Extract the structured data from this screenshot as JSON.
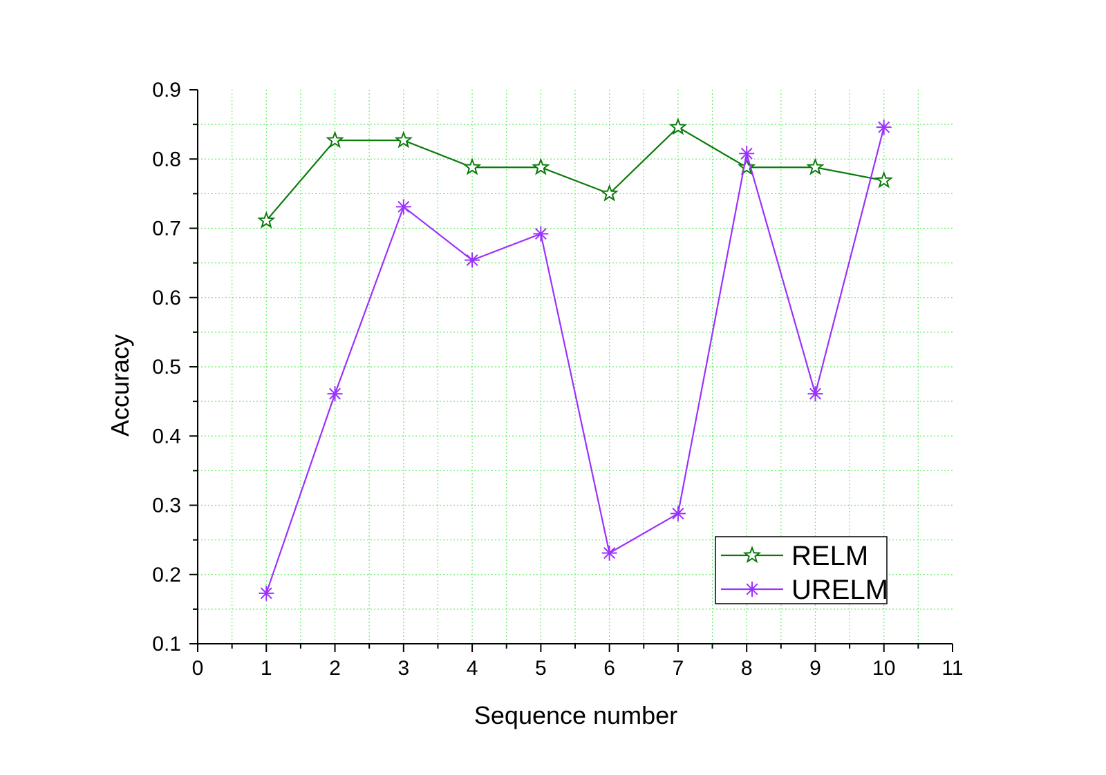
{
  "chart_data": {
    "type": "line",
    "title": "",
    "xlabel": "Sequence number",
    "ylabel": "Accuracy",
    "xlim": [
      0,
      11
    ],
    "ylim": [
      0.1,
      0.9
    ],
    "x_ticks": [
      0,
      1,
      2,
      3,
      4,
      5,
      6,
      7,
      8,
      9,
      10,
      11
    ],
    "x_tick_labels": [
      "0",
      "1",
      "2",
      "3",
      "4",
      "5",
      "6",
      "7",
      "8",
      "9",
      "10",
      "11"
    ],
    "y_ticks": [
      0.1,
      0.2,
      0.3,
      0.4,
      0.5,
      0.6,
      0.7,
      0.8,
      0.9
    ],
    "y_tick_labels": [
      "0.1",
      "0.2",
      "0.3",
      "0.4",
      "0.5",
      "0.6",
      "0.7",
      "0.8",
      "0.9"
    ],
    "grid": true,
    "grid_color": "#66ee66",
    "legend_position": "bottom-right",
    "x": [
      1,
      2,
      3,
      4,
      5,
      6,
      7,
      8,
      9,
      10
    ],
    "series": [
      {
        "name": "RELM",
        "color": "#0a7a0a",
        "marker": "star",
        "values": [
          0.711,
          0.827,
          0.827,
          0.788,
          0.788,
          0.75,
          0.846,
          0.788,
          0.788,
          0.769
        ]
      },
      {
        "name": "URELM",
        "color": "#9b30ff",
        "marker": "asterisk",
        "values": [
          0.173,
          0.461,
          0.731,
          0.654,
          0.692,
          0.231,
          0.288,
          0.808,
          0.461,
          0.846
        ]
      }
    ]
  }
}
